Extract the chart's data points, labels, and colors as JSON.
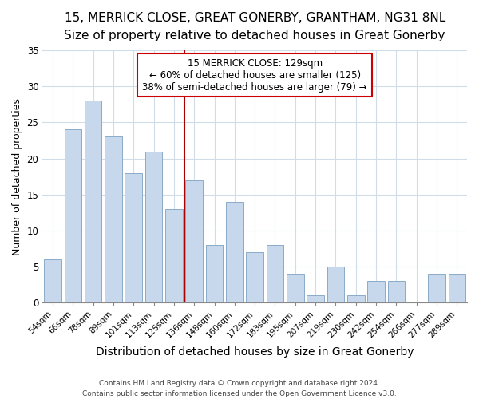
{
  "title1": "15, MERRICK CLOSE, GREAT GONERBY, GRANTHAM, NG31 8NL",
  "title2": "Size of property relative to detached houses in Great Gonerby",
  "xlabel": "Distribution of detached houses by size in Great Gonerby",
  "ylabel": "Number of detached properties",
  "bar_labels": [
    "54sqm",
    "66sqm",
    "78sqm",
    "89sqm",
    "101sqm",
    "113sqm",
    "125sqm",
    "136sqm",
    "148sqm",
    "160sqm",
    "172sqm",
    "183sqm",
    "195sqm",
    "207sqm",
    "219sqm",
    "230sqm",
    "242sqm",
    "254sqm",
    "266sqm",
    "277sqm",
    "289sqm"
  ],
  "bar_values": [
    6,
    24,
    28,
    23,
    18,
    21,
    13,
    17,
    8,
    14,
    7,
    8,
    4,
    1,
    5,
    1,
    3,
    3,
    0,
    4,
    4
  ],
  "bar_color": "#c8d8ec",
  "bar_edge_color": "#8aaac8",
  "vline_x_idx": 6,
  "vline_color": "#aa0000",
  "annotation_line1": "15 MERRICK CLOSE: 129sqm",
  "annotation_line2": "← 60% of detached houses are smaller (125)",
  "annotation_line3": "38% of semi-detached houses are larger (79) →",
  "annotation_box_facecolor": "white",
  "annotation_box_edgecolor": "#cc0000",
  "ylim": [
    0,
    35
  ],
  "yticks": [
    0,
    5,
    10,
    15,
    20,
    25,
    30,
    35
  ],
  "footer1": "Contains HM Land Registry data © Crown copyright and database right 2024.",
  "footer2": "Contains public sector information licensed under the Open Government Licence v3.0.",
  "bg_color": "#ffffff",
  "grid_color": "#d0dde8",
  "title1_fontsize": 11,
  "title2_fontsize": 10,
  "ylabel_fontsize": 9,
  "xlabel_fontsize": 10
}
